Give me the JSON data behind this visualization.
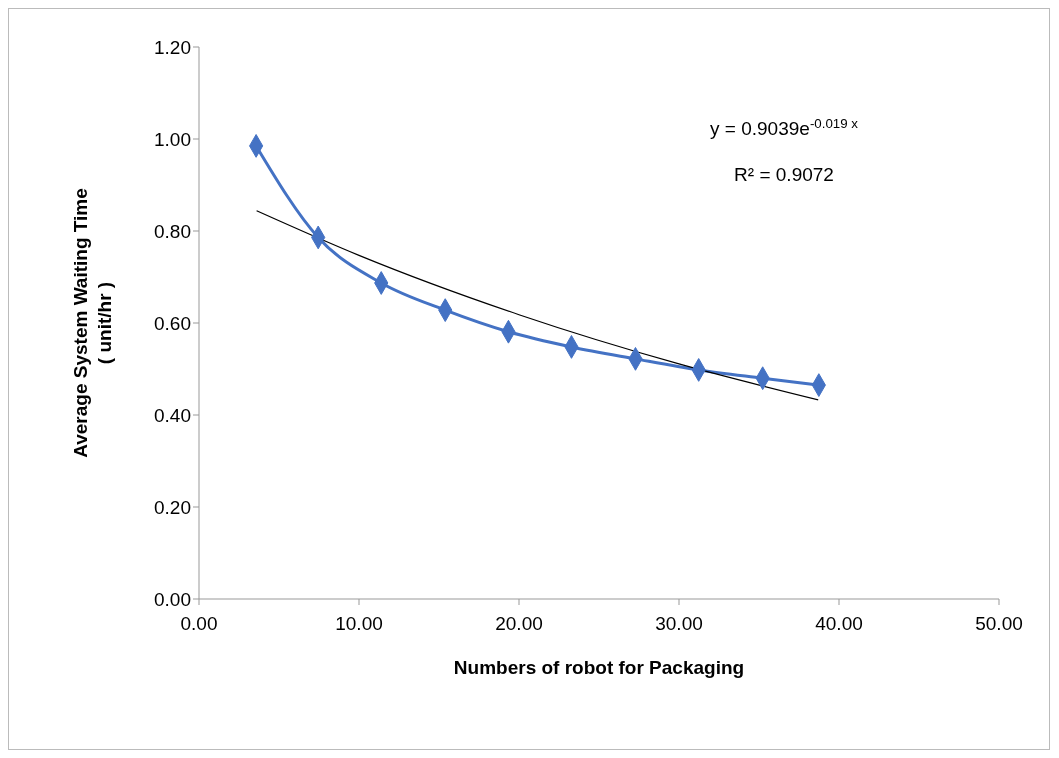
{
  "chart_data": {
    "type": "line",
    "xlabel": "Numbers of robot for Packaging",
    "ylabel": "Average System Waiting Time\n( unit/hr )",
    "series": [
      {
        "color": "#4472c4",
        "x": [
          3.57,
          7.45,
          11.39,
          15.39,
          19.34,
          23.28,
          27.28,
          31.23,
          35.23,
          38.74
        ],
        "values": [
          0.985,
          0.786,
          0.687,
          0.628,
          0.581,
          0.548,
          0.522,
          0.498,
          0.48,
          0.465
        ],
        "marker": "diamond"
      },
      {
        "color": "#000000",
        "x": [
          3.6,
          10,
          20,
          30,
          38.7
        ],
        "values": [
          0.844,
          0.747,
          0.618,
          0.511,
          0.433
        ],
        "marker": "none"
      }
    ],
    "xlim": [
      0,
      50
    ],
    "xticks": [
      {
        "value": 0,
        "label": "0.00"
      },
      {
        "value": 10,
        "label": "10.00"
      },
      {
        "value": 20,
        "label": "20.00"
      },
      {
        "value": 30,
        "label": "30.00"
      },
      {
        "value": 40,
        "label": "40.00"
      },
      {
        "value": 50,
        "label": "50.00"
      }
    ],
    "ylim": [
      0,
      1.2
    ],
    "yticks": [
      {
        "value": 0,
        "label": "0.00"
      },
      {
        "value": 0.2,
        "label": "0.20"
      },
      {
        "value": 0.4,
        "label": "0.40"
      },
      {
        "value": 0.6,
        "label": "0.60"
      },
      {
        "value": 0.8,
        "label": "0.80"
      },
      {
        "value": 1,
        "label": "1.00"
      },
      {
        "value": 1.2,
        "label": "1.20"
      }
    ],
    "annotations": [
      "y = 0.9039e$^{-0.019 x}$",
      "R² = 0.9072"
    ],
    "grid": false,
    "legend": false,
    "line_style": "solid"
  }
}
